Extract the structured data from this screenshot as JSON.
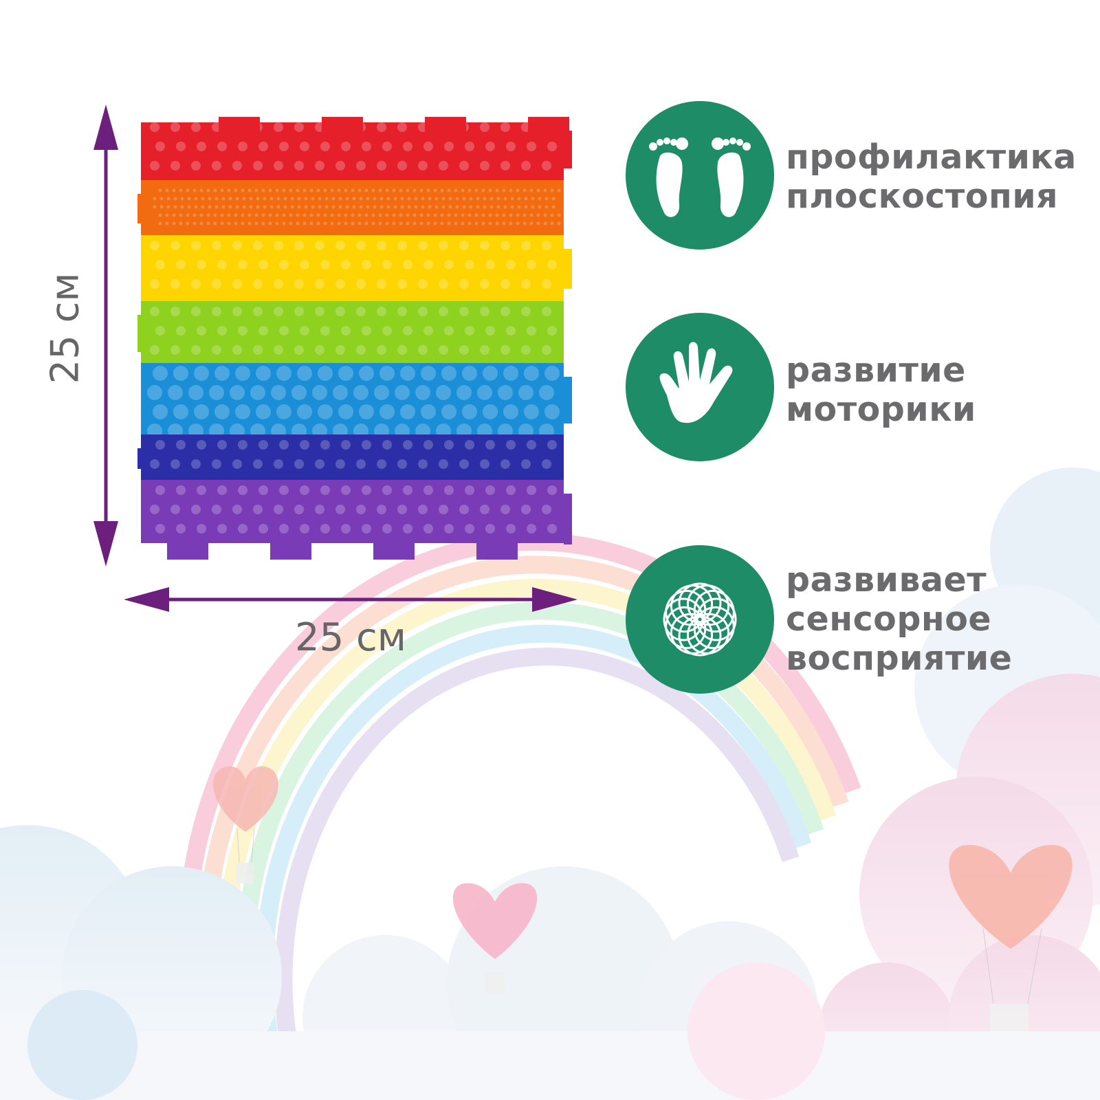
{
  "dimensions": {
    "height_label": "25 см",
    "width_label": "25 см"
  },
  "mat_colors": [
    "#e5202a",
    "#f26b10",
    "#ffd500",
    "#8ed11f",
    "#1a8fd8",
    "#2b2ea6",
    "#7a3cb6"
  ],
  "arrow_color": "#6c1f7c",
  "accent_color": "#1e8c67",
  "features": [
    {
      "icon": "footprints-icon",
      "lines": [
        "профилактика",
        "плоскостопия"
      ]
    },
    {
      "icon": "hand-icon",
      "lines": [
        "развитие",
        "моторики"
      ]
    },
    {
      "icon": "spiral-flower-icon",
      "lines": [
        "развивает",
        "сенсорное",
        "восприятие"
      ]
    }
  ]
}
